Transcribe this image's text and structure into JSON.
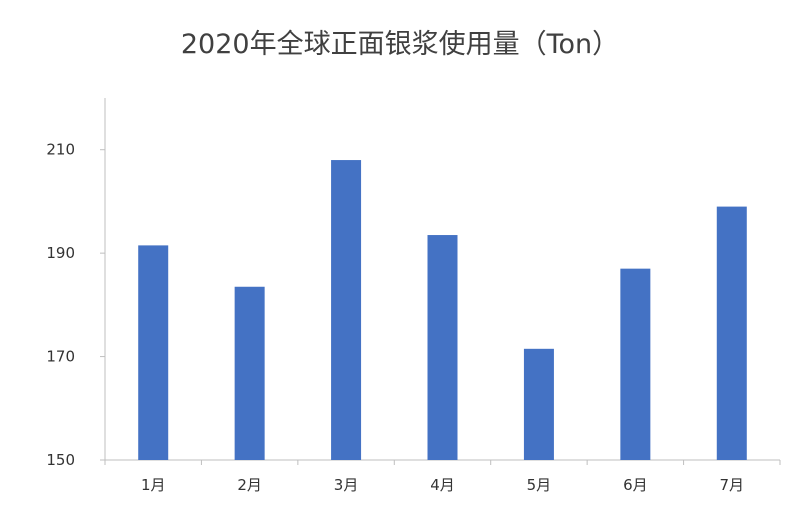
{
  "chart_data": {
    "type": "bar",
    "title": "2020年全球正面银浆使用量（Ton）",
    "categories": [
      "1月",
      "2月",
      "3月",
      "4月",
      "5月",
      "6月",
      "7月"
    ],
    "values": [
      191.5,
      183.5,
      208,
      193.5,
      171.5,
      187,
      199
    ],
    "ylim": [
      150,
      220
    ],
    "yticks": [
      150,
      170,
      190,
      210
    ],
    "xlabel": "",
    "ylabel": "",
    "grid": false,
    "legend": "none",
    "bar_color": "#4472C4"
  }
}
